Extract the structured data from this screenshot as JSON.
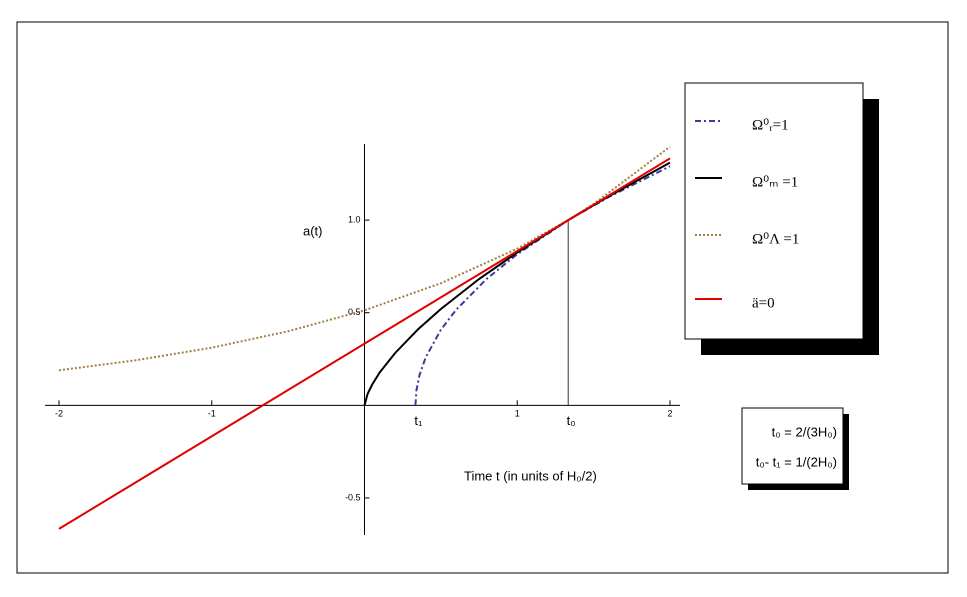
{
  "chart_data": {
    "type": "line",
    "y_label": "a(t)",
    "x_label": "Time  t (in units of H₀/2)",
    "xlim": [
      -2,
      2
    ],
    "ylim": [
      -0.7,
      1.4
    ],
    "xticks": [
      -2,
      -1,
      1,
      2
    ],
    "yticks": [
      -0.5,
      0.5,
      {
        "value": 1,
        "label": "1.0"
      }
    ],
    "series": [
      {
        "name": "Ω⁰ᵣ=1",
        "color": "#3b3b9c",
        "style": "dashdot",
        "x": [
          0.3333,
          0.34,
          0.36,
          0.4,
          0.5,
          0.6,
          0.8,
          1,
          1.3333,
          1.6,
          2
        ],
        "values": [
          0,
          0.082,
          0.163,
          0.258,
          0.408,
          0.516,
          0.683,
          0.816,
          1,
          1.125,
          1.291
        ]
      },
      {
        "name": "Ω⁰ₘ =1",
        "color": "#000000",
        "style": "solid",
        "x": [
          0,
          0.02,
          0.05,
          0.1,
          0.2,
          0.35,
          0.5,
          0.75,
          1,
          1.3333,
          1.6,
          2
        ],
        "values": [
          0,
          0.061,
          0.112,
          0.178,
          0.282,
          0.41,
          0.52,
          0.682,
          0.825,
          1,
          1.129,
          1.31
        ]
      },
      {
        "name": "Ω⁰Λ =1",
        "color": "#a08040",
        "style": "dotted",
        "x": [
          -2,
          -1.5,
          -1,
          -0.5,
          0,
          0.5,
          1,
          1.3333,
          1.5,
          2
        ],
        "values": [
          0.189,
          0.243,
          0.311,
          0.4,
          0.513,
          0.659,
          0.846,
          1,
          1.087,
          1.396
        ]
      },
      {
        "name": "ä=0",
        "color": "#e00000",
        "style": "solid",
        "x": [
          -2,
          2
        ],
        "values": [
          -0.667,
          1.333
        ]
      }
    ],
    "annotations": [
      {
        "text": "t₁",
        "x": 0.3333,
        "y": 0
      },
      {
        "text": "t₀",
        "x": 1.3333,
        "y": 1
      }
    ],
    "info_box": [
      "t₀ = 2/(3H₀)",
      "t₀- t₁ = 1/(2H₀)"
    ]
  }
}
